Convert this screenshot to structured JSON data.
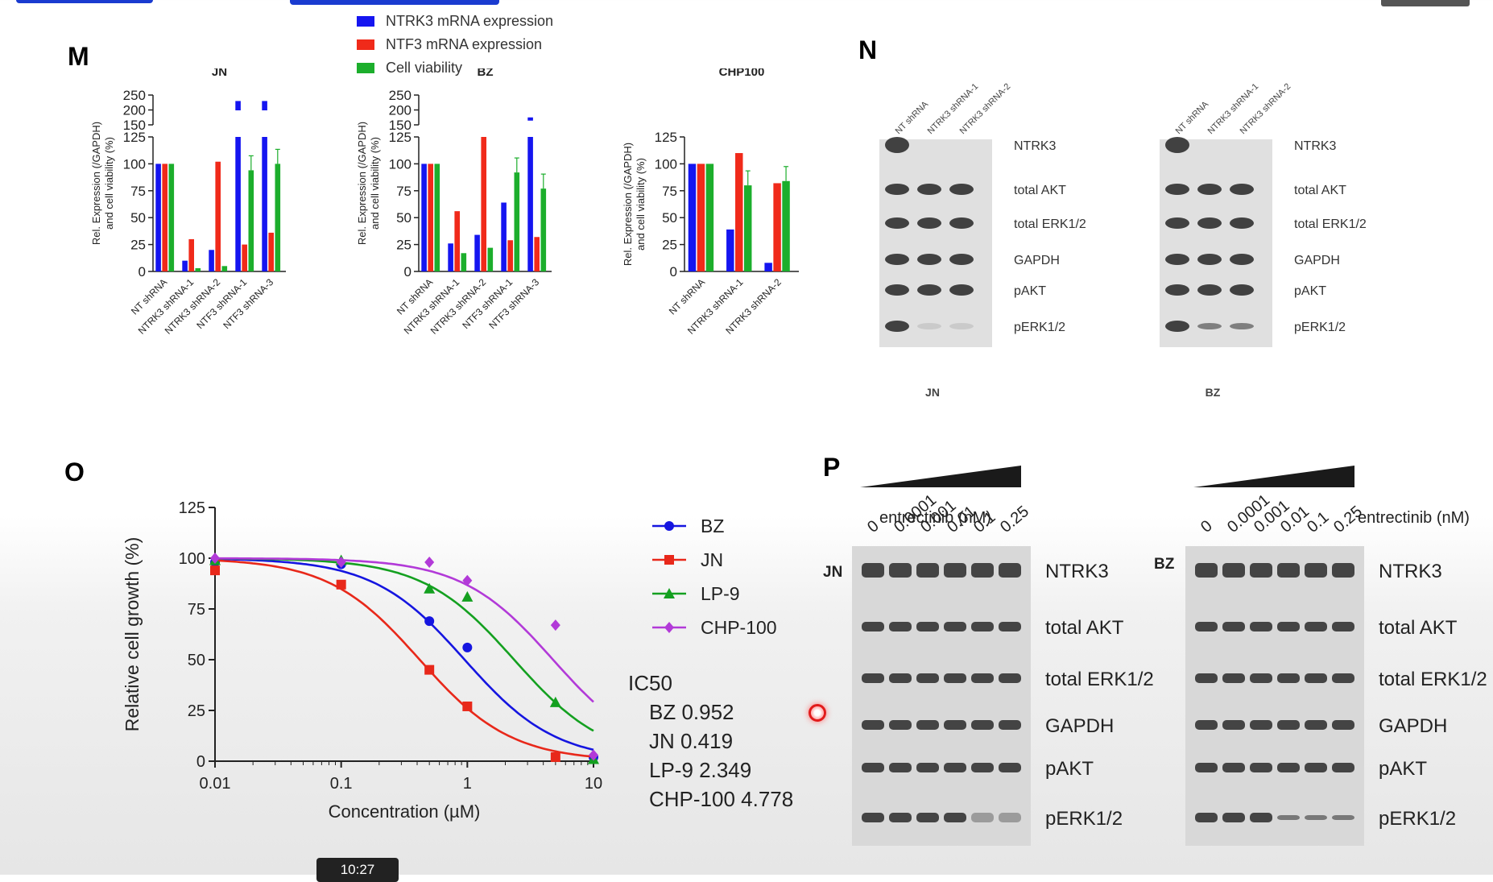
{
  "panel_letters": {
    "m": "M",
    "n": "N",
    "o": "O",
    "p": "P"
  },
  "panel_m": {
    "legend": [
      {
        "label": "NTRK3 mRNA expression",
        "color": "#1515f0"
      },
      {
        "label": "NTF3 mRNA expression",
        "color": "#f02a1a"
      },
      {
        "label": "Cell viability",
        "color": "#1cae2c"
      }
    ],
    "ylabel_line1": "Rel. Expression (/GAPDH)",
    "ylabel_line2": "and cell viability (%)"
  },
  "panel_n": {
    "lanes": [
      "NT shRNA",
      "NTRK3 shRNA-1",
      "NTRK3 shRNA-2"
    ],
    "bands": [
      "NTRK3",
      "total AKT",
      "total ERK1/2",
      "GAPDH",
      "pAKT",
      "pERK1/2"
    ],
    "blots": [
      "JN",
      "BZ"
    ]
  },
  "panel_o": {
    "ic50_title": "IC50",
    "ic50_values": [
      "BZ 0.952",
      "JN 0.419",
      "LP-9 2.349",
      "CHP-100 4.778"
    ]
  },
  "panel_p": {
    "treatment_label": "entrectinib (nM)",
    "concentrations": [
      "0",
      "0.0001",
      "0.001",
      "0.01",
      "0.1",
      "0.25"
    ],
    "blots": [
      "JN",
      "BZ"
    ],
    "bands": [
      "NTRK3",
      "total AKT",
      "total ERK1/2",
      "GAPDH",
      "pAKT",
      "pERK1/2"
    ]
  },
  "video": {
    "timestamp": "10:27"
  },
  "chart_data": [
    {
      "type": "bar",
      "title": "JN",
      "categories": [
        "NT shRNA",
        "NTRK3 shRNA-1",
        "NTRK3 shRNA-2",
        "NTF3 shRNA-1",
        "NTF3 shRNA-3"
      ],
      "series": [
        {
          "name": "NTRK3 mRNA expression",
          "values": [
            100,
            10,
            20,
            230,
            230
          ]
        },
        {
          "name": "NTF3 mRNA expression",
          "values": [
            100,
            30,
            102,
            25,
            36
          ]
        },
        {
          "name": "Cell viability",
          "values": [
            100,
            3,
            5,
            94,
            100
          ]
        }
      ],
      "ylabel": "Rel. Expression (/GAPDH) and cell viability (%)",
      "y_ticks_lower": [
        0,
        25,
        50,
        75,
        100,
        125
      ],
      "y_ticks_upper": [
        150,
        200,
        250
      ],
      "broken_axis": true
    },
    {
      "type": "bar",
      "title": "BZ",
      "categories": [
        "NT shRNA",
        "NTRK3 shRNA-1",
        "NTRK3 shRNA-2",
        "NTF3 shRNA-1",
        "NTF3 shRNA-3"
      ],
      "series": [
        {
          "name": "NTRK3 mRNA expression",
          "values": [
            100,
            26,
            34,
            64,
            175
          ]
        },
        {
          "name": "NTF3 mRNA expression",
          "values": [
            100,
            56,
            125,
            29,
            32
          ]
        },
        {
          "name": "Cell viability",
          "values": [
            100,
            17,
            22,
            92,
            77
          ]
        }
      ],
      "ylabel": "Rel. Expression (/GAPDH) and cell viability (%)",
      "y_ticks_lower": [
        0,
        25,
        50,
        75,
        100,
        125
      ],
      "y_ticks_upper": [
        150,
        200,
        250
      ],
      "broken_axis": true
    },
    {
      "type": "bar",
      "title": "CHP100",
      "categories": [
        "NT shRNA",
        "NTRK3 shRNA-1",
        "NTRK3 shRNA-2"
      ],
      "series": [
        {
          "name": "NTRK3 mRNA expression",
          "values": [
            100,
            39,
            8
          ]
        },
        {
          "name": "NTF3 mRNA expression",
          "values": [
            100,
            110,
            82
          ]
        },
        {
          "name": "Cell viability",
          "values": [
            100,
            80,
            84
          ]
        }
      ],
      "ylabel": "Rel. Expression (/GAPDH) and cell viability (%)",
      "y_ticks": [
        0,
        25,
        50,
        75,
        100,
        125
      ],
      "ylim": [
        0,
        125
      ]
    },
    {
      "type": "line",
      "xlabel": "Concentration (µM)",
      "ylabel": "Relative cell growth (%)",
      "x_scale": "log",
      "xlim": [
        0.01,
        10
      ],
      "ylim": [
        0,
        125
      ],
      "x_ticks": [
        "0.01",
        "0.1",
        "1",
        "10"
      ],
      "y_ticks": [
        0,
        25,
        50,
        75,
        100,
        125
      ],
      "series": [
        {
          "name": "BZ",
          "color": "#1515e0",
          "marker": "circle",
          "ic50": 0.952,
          "points": [
            [
              0.01,
              98
            ],
            [
              0.1,
              97
            ],
            [
              0.5,
              69
            ],
            [
              1,
              56
            ],
            [
              10,
              2
            ]
          ]
        },
        {
          "name": "JN",
          "color": "#e8281a",
          "marker": "square",
          "ic50": 0.419,
          "points": [
            [
              0.01,
              94
            ],
            [
              0.1,
              87
            ],
            [
              0.5,
              45
            ],
            [
              1,
              27
            ],
            [
              5,
              2
            ]
          ]
        },
        {
          "name": "LP-9",
          "color": "#14a020",
          "marker": "triangle",
          "ic50": 2.349,
          "points": [
            [
              0.01,
              99
            ],
            [
              0.1,
              99
            ],
            [
              0.5,
              85
            ],
            [
              1,
              81
            ],
            [
              5,
              29
            ],
            [
              10,
              1
            ]
          ]
        },
        {
          "name": "CHP-100",
          "color": "#b23ad8",
          "marker": "diamond",
          "ic50": 4.778,
          "points": [
            [
              0.01,
              100
            ],
            [
              0.1,
              98
            ],
            [
              0.5,
              98
            ],
            [
              1,
              89
            ],
            [
              5,
              67
            ],
            [
              10,
              3
            ]
          ]
        }
      ],
      "legend_position": "right"
    }
  ]
}
